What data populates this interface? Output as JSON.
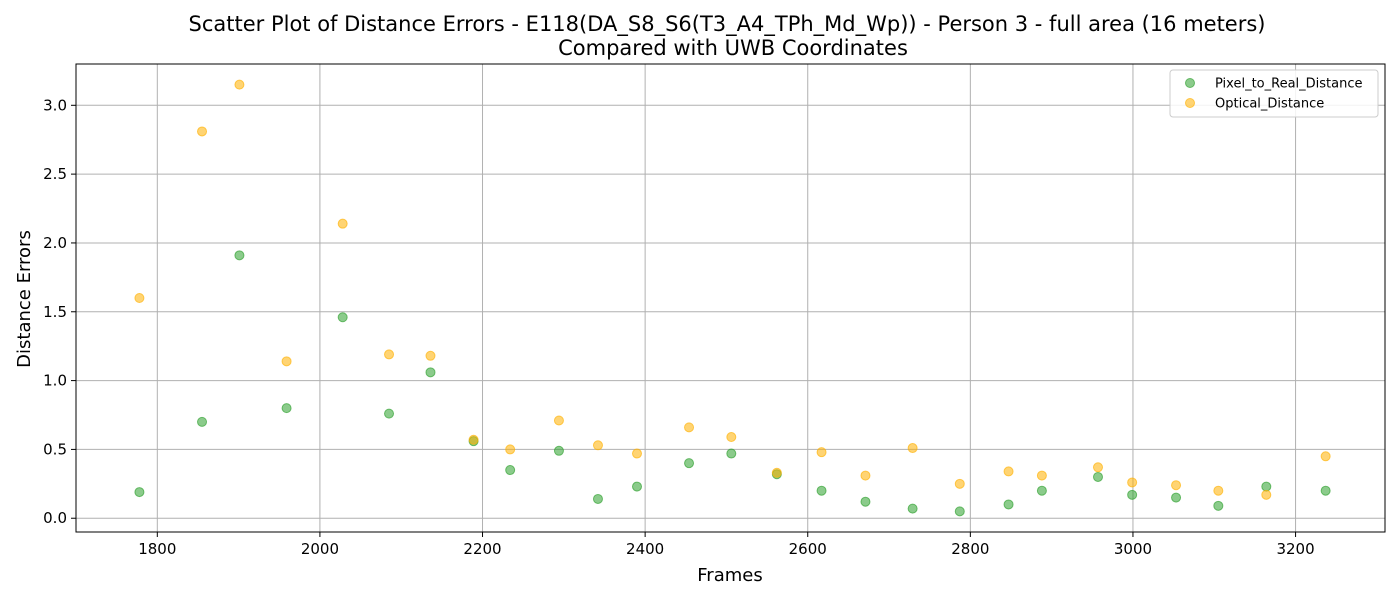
{
  "chart_data": {
    "type": "scatter",
    "title": "Scatter Plot of Distance Errors - E118(DA_S8_S6(T3_A4_TPh_Md_Wp)) - Person 3 - full area (16 meters)",
    "subtitle": "Compared with UWB Coordinates",
    "xlabel": "Frames",
    "ylabel": "Distance Errors",
    "xlim": [
      1700,
      3310
    ],
    "ylim": [
      -0.1,
      3.3
    ],
    "xticks": [
      1800,
      2000,
      2200,
      2400,
      2600,
      2800,
      3000,
      3200
    ],
    "yticks": [
      0.0,
      0.5,
      1.0,
      1.5,
      2.0,
      2.5,
      3.0
    ],
    "xtick_labels": [
      "1800",
      "2000",
      "2200",
      "2400",
      "2600",
      "2800",
      "3000",
      "3200"
    ],
    "ytick_labels": [
      "0.0",
      "0.5",
      "1.0",
      "1.5",
      "2.0",
      "2.5",
      "3.0"
    ],
    "grid": true,
    "legend_position": "top-right",
    "series": [
      {
        "name": "Pixel_to_Real_Distance",
        "color": "#2ca02c",
        "x": [
          1778,
          1855,
          1901,
          1959,
          2028,
          2085,
          2136,
          2189,
          2234,
          2294,
          2342,
          2390,
          2454,
          2506,
          2562,
          2617,
          2671,
          2729,
          2787,
          2847,
          2888,
          2957,
          2999,
          3053,
          3105,
          3164,
          3237
        ],
        "y": [
          0.19,
          0.7,
          1.91,
          0.8,
          1.46,
          0.76,
          1.06,
          0.56,
          0.35,
          0.49,
          0.14,
          0.23,
          0.4,
          0.47,
          0.32,
          0.2,
          0.12,
          0.07,
          0.05,
          0.1,
          0.2,
          0.3,
          0.17,
          0.15,
          0.09,
          0.23,
          0.2
        ]
      },
      {
        "name": "Optical_Distance",
        "color": "#ffb000",
        "x": [
          1778,
          1855,
          1901,
          1959,
          2028,
          2085,
          2136,
          2189,
          2234,
          2294,
          2342,
          2390,
          2454,
          2506,
          2562,
          2617,
          2671,
          2729,
          2787,
          2847,
          2888,
          2957,
          2999,
          3053,
          3105,
          3164,
          3237
        ],
        "y": [
          1.6,
          2.81,
          3.15,
          1.14,
          2.14,
          1.19,
          1.18,
          0.57,
          0.5,
          0.71,
          0.53,
          0.47,
          0.66,
          0.59,
          0.33,
          0.48,
          0.31,
          0.51,
          0.25,
          0.34,
          0.31,
          0.37,
          0.26,
          0.24,
          0.2,
          0.17,
          0.45
        ]
      }
    ]
  }
}
